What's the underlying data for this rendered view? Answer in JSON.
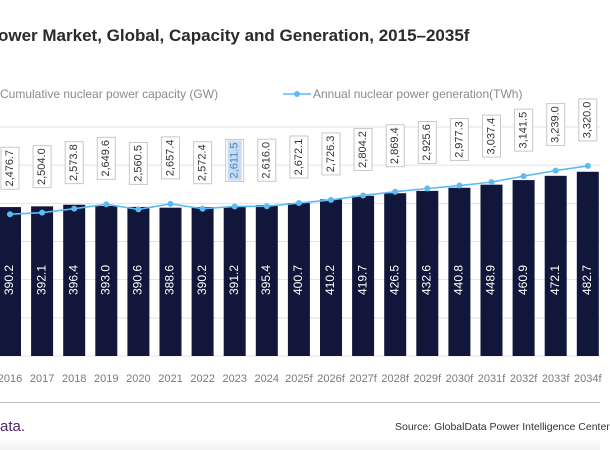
{
  "title": "ower Market, Global, Capacity and Generation, 2015–2035f",
  "footer": {
    "logo_text": "ata.",
    "source": "Source: GlobalData Power Intelligence Center"
  },
  "colors": {
    "bar": "#10173a",
    "line": "#5bbcf5",
    "grid": "#e2e2e2",
    "highlight": "#c5dcf5"
  },
  "chart_data": {
    "type": "bar+line",
    "categories": [
      "2016",
      "2017",
      "2018",
      "2019",
      "2020",
      "2021",
      "2022",
      "2023",
      "2024",
      "2025f",
      "2026f",
      "2027f",
      "2028f",
      "2029f",
      "2030f",
      "2031f",
      "2032f",
      "2033f",
      "2034f"
    ],
    "series": [
      {
        "name": "Cumulative nuclear power capacity (GW)",
        "type": "bar",
        "axis": "left",
        "values": [
          390.2,
          392.1,
          396.4,
          393.0,
          390.6,
          388.6,
          390.2,
          391.2,
          395.4,
          400.7,
          410.2,
          419.7,
          426.5,
          432.6,
          440.8,
          448.9,
          460.9,
          472.1,
          482.7
        ],
        "labels": [
          "390.2",
          "392.1",
          "396.4",
          "393.0",
          "390.6",
          "388.6",
          "390.2",
          "391.2",
          "395.4",
          "400.7",
          "410.2",
          "419.7",
          "426.5",
          "432.6",
          "440.8",
          "448.9",
          "460.9",
          "472.1",
          "482.7"
        ]
      },
      {
        "name": "Annual nuclear power generation(TWh)",
        "type": "line",
        "axis": "right",
        "values": [
          2476.7,
          2504.0,
          2573.8,
          2649.6,
          2560.5,
          2657.4,
          2572.4,
          2611.5,
          2616.0,
          2672.1,
          2726.3,
          2804.2,
          2869.4,
          2925.6,
          2977.3,
          3037.4,
          3141.5,
          3239.0,
          3320.0
        ],
        "labels": [
          "2,476.7",
          "2,504.0",
          "2,573.8",
          "2,649.6",
          "2,560.5",
          "2,657.4",
          "2,572.4",
          "2,611.5",
          "2,616.0",
          "2,672.1",
          "2,726.3",
          "2,804.2",
          "2,869.4",
          "2,925.6",
          "2,977.3",
          "3,037.4",
          "3,141.5",
          "3,239.0",
          "3,320.0"
        ]
      }
    ],
    "left_ylim": [
      0,
      600
    ],
    "right_ylim": [
      0,
      4000
    ],
    "grid": true,
    "highlighted_label": "2,611.5",
    "legend_position": "top"
  }
}
